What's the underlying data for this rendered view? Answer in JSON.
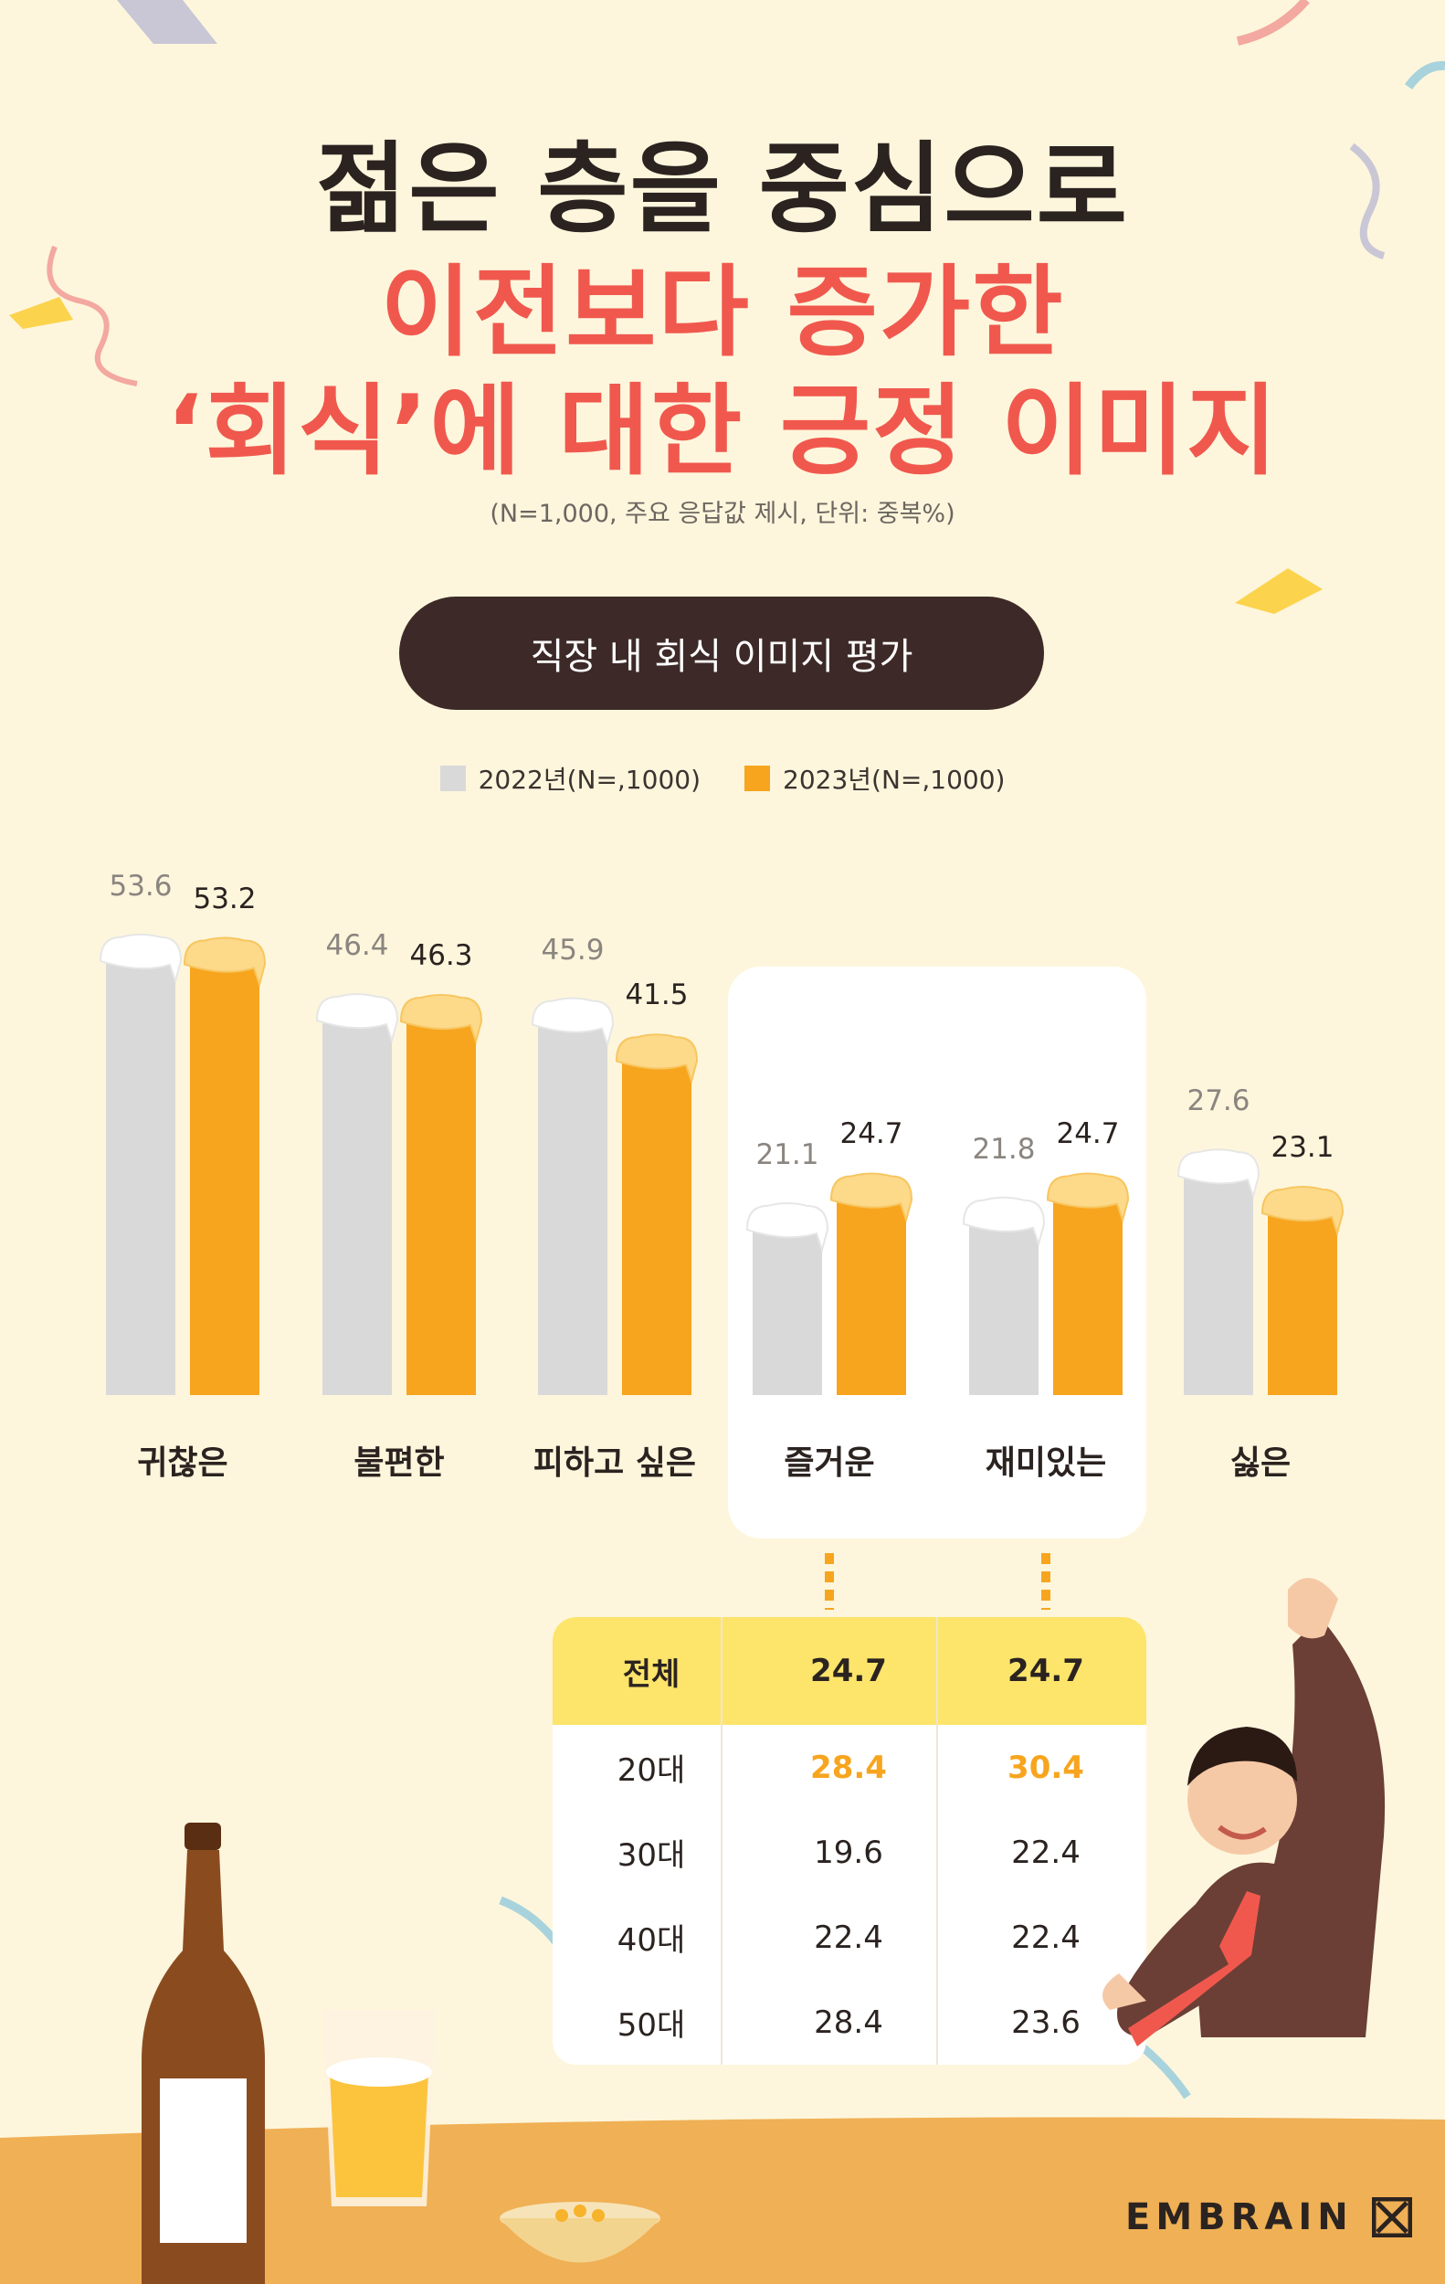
{
  "headline": {
    "line1": "젊은 층을 중심으로",
    "line2": "이전보다 증가한",
    "line3": "‘회식’에 대한 긍정 이미지"
  },
  "note": "(N=1,000, 주요 응답값 제시, 단위: 중복%)",
  "section_title": "직장 내 회식 이미지 평가",
  "colors": {
    "series2022": "#d9d9d9",
    "series2023": "#f7a51e",
    "headline_accent": "#f0584e",
    "dark": "#2b2320",
    "table_highlight": "#f7a51e"
  },
  "chart_data": {
    "type": "bar",
    "categories": [
      "귀찮은",
      "불편한",
      "피하고 싶은",
      "즐거운",
      "재미있는",
      "싫은"
    ],
    "series": [
      {
        "name": "2022년(N=,1000)",
        "values": [
          53.6,
          46.4,
          45.9,
          21.1,
          21.8,
          27.6
        ]
      },
      {
        "name": "2023년(N=,1000)",
        "values": [
          53.2,
          46.3,
          41.5,
          24.7,
          24.7,
          23.1
        ]
      }
    ],
    "value_labels_2022": [
      "53.6",
      "46.4",
      "45.9",
      "21.1",
      "21.8",
      "27.6"
    ],
    "value_labels_2023": [
      "53.2",
      "46.3",
      "41.5",
      "24.7",
      "24.7",
      "23.1"
    ],
    "highlighted_categories": [
      "즐거운",
      "재미있는"
    ],
    "legend_position": "top-center",
    "grid": false
  },
  "breakdown_table": {
    "rows": [
      {
        "label": "전체",
        "values": [
          "24.7",
          "24.7"
        ]
      },
      {
        "label": "20대",
        "values": [
          "28.4",
          "30.4"
        ]
      },
      {
        "label": "30대",
        "values": [
          "19.6",
          "22.4"
        ]
      },
      {
        "label": "40대",
        "values": [
          "22.4",
          "22.4"
        ]
      },
      {
        "label": "50대",
        "values": [
          "28.4",
          "23.6"
        ]
      }
    ]
  },
  "brand": {
    "logo_text": "EMBRAIN"
  }
}
